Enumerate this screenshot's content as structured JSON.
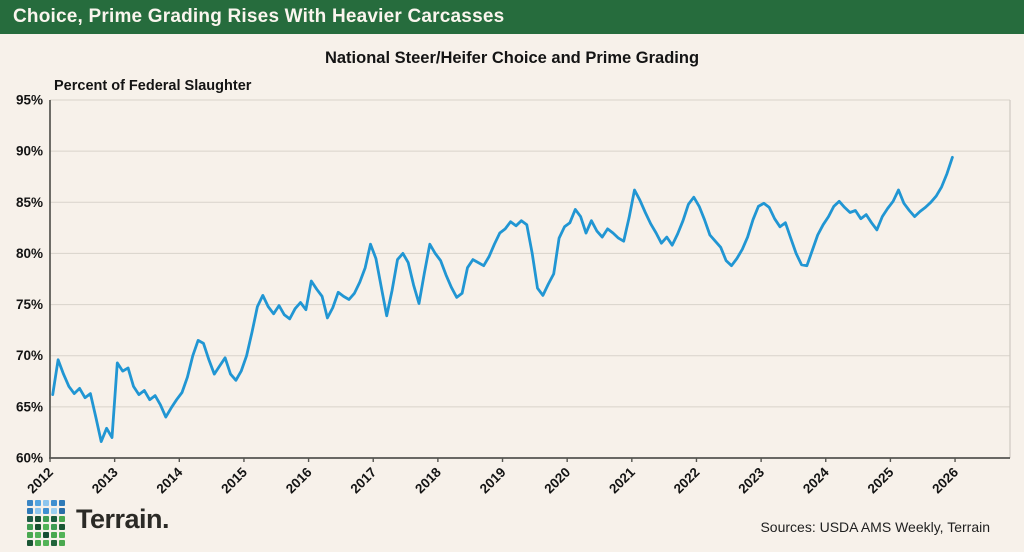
{
  "header": {
    "title": "Choice, Prime Grading Rises With Heavier Carcasses"
  },
  "chart_data": {
    "type": "line",
    "title": "National Steer/Heifer Choice and Prime Grading",
    "axis_annotation": "Percent of Federal Slaughter",
    "xlabel": "",
    "ylabel": "",
    "ylim": [
      60,
      95
    ],
    "xlim": [
      2012,
      2026.85
    ],
    "grid": true,
    "legend": "none",
    "y_ticks": [
      60,
      65,
      70,
      75,
      80,
      85,
      90,
      95
    ],
    "y_tick_labels": [
      "60%",
      "65%",
      "70%",
      "75%",
      "80%",
      "85%",
      "90%",
      "95%"
    ],
    "x_ticks": [
      2012,
      2013,
      2014,
      2015,
      2016,
      2017,
      2018,
      2019,
      2020,
      2021,
      2022,
      2023,
      2024,
      2025,
      2026
    ],
    "x_tick_labels": [
      "2012",
      "2013",
      "2014",
      "2015",
      "2016",
      "2017",
      "2018",
      "2019",
      "2020",
      "2021",
      "2022",
      "2023",
      "2024",
      "2025",
      "2026"
    ],
    "series": [
      {
        "name": "Choice and Prime, percent of federal slaughter",
        "color": "#2196d3",
        "start_year": 2012,
        "frequency": "monthly",
        "values": [
          66.2,
          69.6,
          68.2,
          67.0,
          66.3,
          66.8,
          65.9,
          66.3,
          64.0,
          61.6,
          62.9,
          62.0,
          69.3,
          68.5,
          68.8,
          67.0,
          66.2,
          66.6,
          65.7,
          66.1,
          65.2,
          64.0,
          64.9,
          65.7,
          66.4,
          67.9,
          70.0,
          71.5,
          71.2,
          69.6,
          68.2,
          69.0,
          69.8,
          68.2,
          67.6,
          68.5,
          70.0,
          72.3,
          74.8,
          75.9,
          74.8,
          74.1,
          74.9,
          74.0,
          73.6,
          74.6,
          75.2,
          74.5,
          77.3,
          76.5,
          75.8,
          73.7,
          74.7,
          76.2,
          75.8,
          75.5,
          76.1,
          77.2,
          78.6,
          80.9,
          79.5,
          76.7,
          73.9,
          76.4,
          79.4,
          80.0,
          79.1,
          76.9,
          75.1,
          78.1,
          80.9,
          80.0,
          79.3,
          77.9,
          76.7,
          75.7,
          76.1,
          78.6,
          79.4,
          79.1,
          78.8,
          79.7,
          80.9,
          82.0,
          82.4,
          83.1,
          82.7,
          83.2,
          82.8,
          80.0,
          76.6,
          75.9,
          77.0,
          78.0,
          81.5,
          82.6,
          83.0,
          84.3,
          83.6,
          82.0,
          83.2,
          82.2,
          81.6,
          82.4,
          82.0,
          81.5,
          81.2,
          83.5,
          86.2,
          85.2,
          84.0,
          82.9,
          82.0,
          81.0,
          81.6,
          80.8,
          81.9,
          83.2,
          84.8,
          85.5,
          84.6,
          83.3,
          81.8,
          81.2,
          80.6,
          79.3,
          78.8,
          79.5,
          80.4,
          81.6,
          83.3,
          84.6,
          84.9,
          84.5,
          83.4,
          82.6,
          83.0,
          81.5,
          80.0,
          78.9,
          78.8,
          80.3,
          81.8,
          82.8,
          83.6,
          84.6,
          85.1,
          84.5,
          84.0,
          84.2,
          83.4,
          83.8,
          83.0,
          82.3,
          83.6,
          84.4,
          85.1,
          86.2,
          84.9,
          84.2,
          83.6,
          84.1,
          84.5,
          85.0,
          85.6,
          86.5,
          87.8,
          89.4
        ]
      }
    ]
  },
  "footer": {
    "brand": "Terrain.",
    "sources": "Sources: USDA AMS Weekly, Terrain",
    "logo_grid": [
      [
        "#3b86c4",
        "#55a5e0",
        "#8ec6ee",
        "#3f8fd0",
        "#2f7ab8"
      ],
      [
        "#2e7ab9",
        "#8ec6ee",
        "#3f8fd0",
        "#9ccff0",
        "#2a6ea8"
      ],
      [
        "#1e5c46",
        "#174f33",
        "#3f9c52",
        "#1a5a3c",
        "#49a84f"
      ],
      [
        "#3f9c52",
        "#17512f",
        "#52b357",
        "#3f9c52",
        "#1a5634"
      ],
      [
        "#49a84f",
        "#52b357",
        "#174f33",
        "#49a84f",
        "#52b357"
      ],
      [
        "#1a5634",
        "#49a84f",
        "#52b357",
        "#21643b",
        "#49a84f"
      ]
    ]
  },
  "colors": {
    "header_bg": "#266c3d",
    "background": "#f7f1ea",
    "line": "#2196d3",
    "gridline": "#d9d3cb",
    "axis": "#555550",
    "right_border": "#cfc9c1",
    "text": "#141414"
  }
}
